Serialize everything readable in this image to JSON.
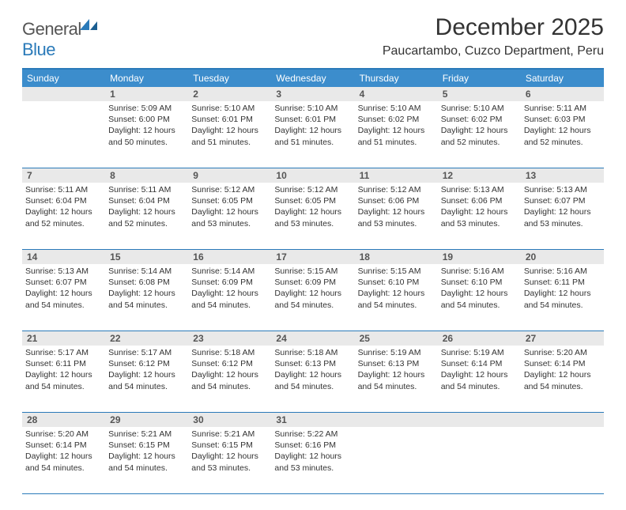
{
  "logo": {
    "word1": "General",
    "word2": "Blue"
  },
  "title": "December 2025",
  "location": "Paucartambo, Cuzco Department, Peru",
  "colors": {
    "header_bg": "#3c8dcc",
    "border": "#2a7ab9",
    "daynum_bg": "#e9e9e9",
    "text": "#333333",
    "page_bg": "#ffffff"
  },
  "day_headers": [
    "Sunday",
    "Monday",
    "Tuesday",
    "Wednesday",
    "Thursday",
    "Friday",
    "Saturday"
  ],
  "weeks": [
    [
      null,
      {
        "n": "1",
        "sr": "5:09 AM",
        "ss": "6:00 PM",
        "dl": "12 hours and 50 minutes."
      },
      {
        "n": "2",
        "sr": "5:10 AM",
        "ss": "6:01 PM",
        "dl": "12 hours and 51 minutes."
      },
      {
        "n": "3",
        "sr": "5:10 AM",
        "ss": "6:01 PM",
        "dl": "12 hours and 51 minutes."
      },
      {
        "n": "4",
        "sr": "5:10 AM",
        "ss": "6:02 PM",
        "dl": "12 hours and 51 minutes."
      },
      {
        "n": "5",
        "sr": "5:10 AM",
        "ss": "6:02 PM",
        "dl": "12 hours and 52 minutes."
      },
      {
        "n": "6",
        "sr": "5:11 AM",
        "ss": "6:03 PM",
        "dl": "12 hours and 52 minutes."
      }
    ],
    [
      {
        "n": "7",
        "sr": "5:11 AM",
        "ss": "6:04 PM",
        "dl": "12 hours and 52 minutes."
      },
      {
        "n": "8",
        "sr": "5:11 AM",
        "ss": "6:04 PM",
        "dl": "12 hours and 52 minutes."
      },
      {
        "n": "9",
        "sr": "5:12 AM",
        "ss": "6:05 PM",
        "dl": "12 hours and 53 minutes."
      },
      {
        "n": "10",
        "sr": "5:12 AM",
        "ss": "6:05 PM",
        "dl": "12 hours and 53 minutes."
      },
      {
        "n": "11",
        "sr": "5:12 AM",
        "ss": "6:06 PM",
        "dl": "12 hours and 53 minutes."
      },
      {
        "n": "12",
        "sr": "5:13 AM",
        "ss": "6:06 PM",
        "dl": "12 hours and 53 minutes."
      },
      {
        "n": "13",
        "sr": "5:13 AM",
        "ss": "6:07 PM",
        "dl": "12 hours and 53 minutes."
      }
    ],
    [
      {
        "n": "14",
        "sr": "5:13 AM",
        "ss": "6:07 PM",
        "dl": "12 hours and 54 minutes."
      },
      {
        "n": "15",
        "sr": "5:14 AM",
        "ss": "6:08 PM",
        "dl": "12 hours and 54 minutes."
      },
      {
        "n": "16",
        "sr": "5:14 AM",
        "ss": "6:09 PM",
        "dl": "12 hours and 54 minutes."
      },
      {
        "n": "17",
        "sr": "5:15 AM",
        "ss": "6:09 PM",
        "dl": "12 hours and 54 minutes."
      },
      {
        "n": "18",
        "sr": "5:15 AM",
        "ss": "6:10 PM",
        "dl": "12 hours and 54 minutes."
      },
      {
        "n": "19",
        "sr": "5:16 AM",
        "ss": "6:10 PM",
        "dl": "12 hours and 54 minutes."
      },
      {
        "n": "20",
        "sr": "5:16 AM",
        "ss": "6:11 PM",
        "dl": "12 hours and 54 minutes."
      }
    ],
    [
      {
        "n": "21",
        "sr": "5:17 AM",
        "ss": "6:11 PM",
        "dl": "12 hours and 54 minutes."
      },
      {
        "n": "22",
        "sr": "5:17 AM",
        "ss": "6:12 PM",
        "dl": "12 hours and 54 minutes."
      },
      {
        "n": "23",
        "sr": "5:18 AM",
        "ss": "6:12 PM",
        "dl": "12 hours and 54 minutes."
      },
      {
        "n": "24",
        "sr": "5:18 AM",
        "ss": "6:13 PM",
        "dl": "12 hours and 54 minutes."
      },
      {
        "n": "25",
        "sr": "5:19 AM",
        "ss": "6:13 PM",
        "dl": "12 hours and 54 minutes."
      },
      {
        "n": "26",
        "sr": "5:19 AM",
        "ss": "6:14 PM",
        "dl": "12 hours and 54 minutes."
      },
      {
        "n": "27",
        "sr": "5:20 AM",
        "ss": "6:14 PM",
        "dl": "12 hours and 54 minutes."
      }
    ],
    [
      {
        "n": "28",
        "sr": "5:20 AM",
        "ss": "6:14 PM",
        "dl": "12 hours and 54 minutes."
      },
      {
        "n": "29",
        "sr": "5:21 AM",
        "ss": "6:15 PM",
        "dl": "12 hours and 54 minutes."
      },
      {
        "n": "30",
        "sr": "5:21 AM",
        "ss": "6:15 PM",
        "dl": "12 hours and 53 minutes."
      },
      {
        "n": "31",
        "sr": "5:22 AM",
        "ss": "6:16 PM",
        "dl": "12 hours and 53 minutes."
      },
      null,
      null,
      null
    ]
  ],
  "labels": {
    "sunrise": "Sunrise:",
    "sunset": "Sunset:",
    "daylight": "Daylight:"
  }
}
